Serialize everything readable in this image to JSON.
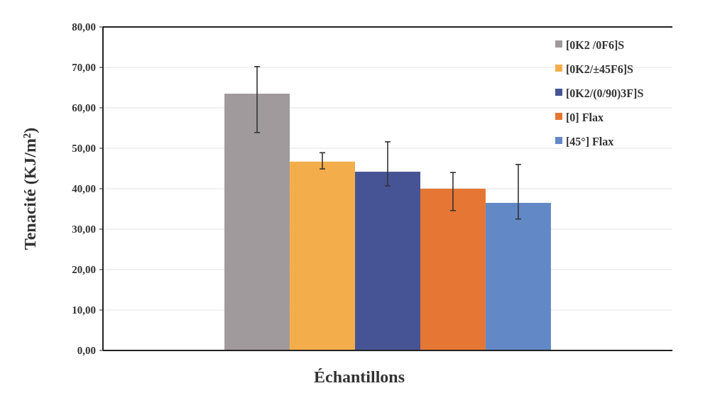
{
  "chart_data": {
    "type": "bar",
    "xlabel": "Échantillons",
    "ylabel": "Tenacité (KJ/m²)",
    "categories": [
      null
    ],
    "series": [
      {
        "name": "[0K2 /0F6]S",
        "color": "#a09a9d",
        "values": [
          63.5
        ],
        "errors": [
          [
            53.9,
            70.2
          ]
        ]
      },
      {
        "name": "[0K2/±45F6]S",
        "color": "#f3ae4b",
        "values": [
          46.7
        ],
        "errors": [
          [
            44.9,
            48.9
          ]
        ]
      },
      {
        "name": "[0K2/(0/90)3F]S",
        "color": "#465495",
        "values": [
          44.2
        ],
        "errors": [
          [
            40.7,
            51.6
          ]
        ]
      },
      {
        "name": "[0] Flax",
        "color": "#e57634",
        "values": [
          40.0
        ],
        "errors": [
          [
            34.6,
            44.0
          ]
        ]
      },
      {
        "name": "[45°] Flax",
        "color": "#6288c6",
        "values": [
          36.5
        ],
        "errors": [
          [
            32.5,
            46.0
          ]
        ]
      }
    ],
    "ylim": [
      0,
      80
    ],
    "yticks": [
      {
        "value": 0,
        "label": "0,00"
      },
      {
        "value": 10,
        "label": "10,00"
      },
      {
        "value": 20,
        "label": "20,00"
      },
      {
        "value": 30,
        "label": "30,00"
      },
      {
        "value": 40,
        "label": "40,00"
      },
      {
        "value": 50,
        "label": "50,00"
      },
      {
        "value": 60,
        "label": "60,00"
      },
      {
        "value": 70,
        "label": "70,00"
      },
      {
        "value": 80,
        "label": "80,00"
      }
    ],
    "grid": "y",
    "legend": "top right"
  }
}
